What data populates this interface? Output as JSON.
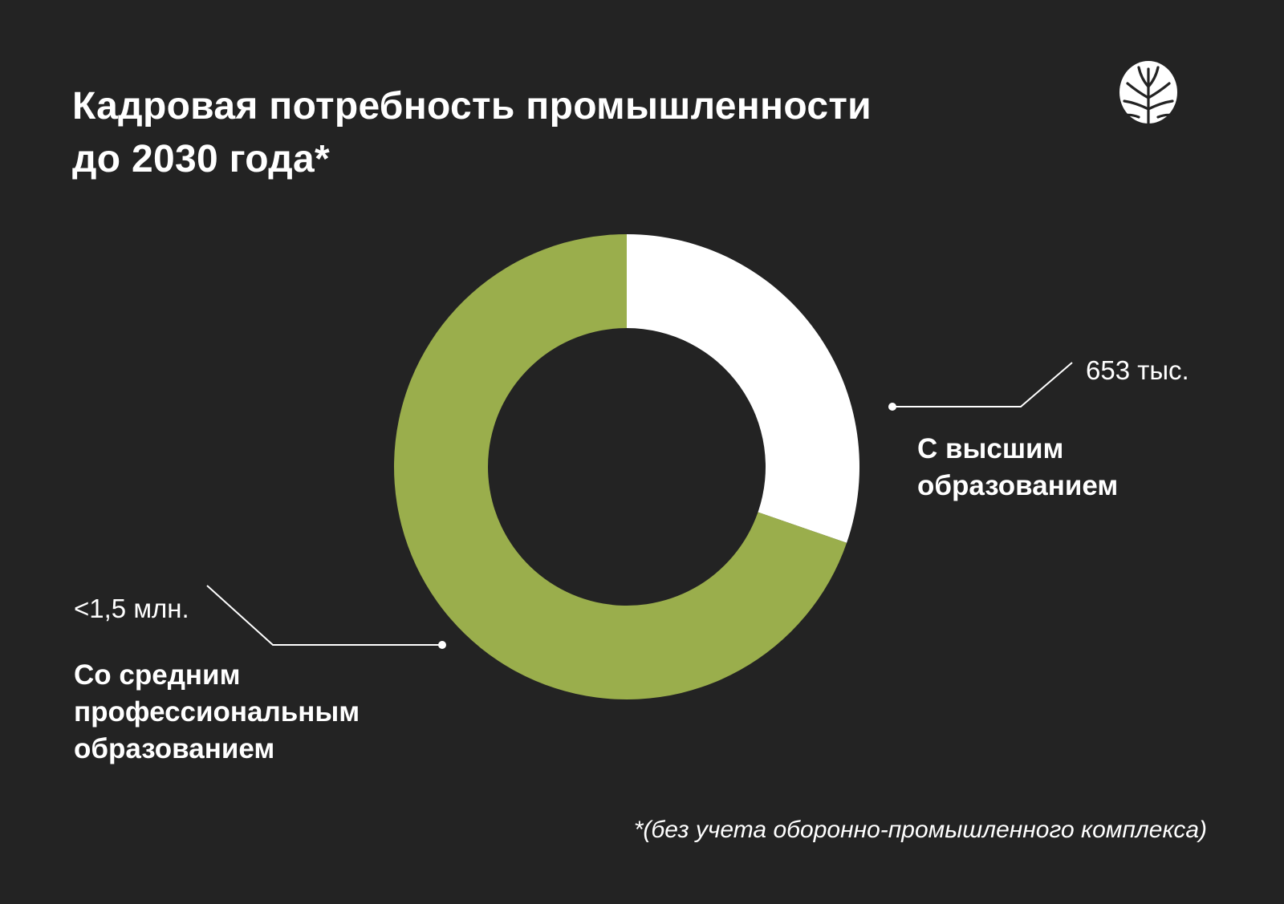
{
  "title_lines": [
    "Кадровая потребность промышленности",
    "до 2030 года*"
  ],
  "logo": {
    "icon": "tree-logo-icon"
  },
  "colors": {
    "background": "#232323",
    "higher_education": "#ffffff",
    "vocational_education": "#9aae4c",
    "text": "#ffffff"
  },
  "chart_data": {
    "type": "pie",
    "variant": "donut",
    "slices": [
      {
        "label_lines": [
          "С высшим",
          "образованием"
        ],
        "value_label": "653 тыс.",
        "share": 0.303,
        "color": "#ffffff"
      },
      {
        "label_lines": [
          "Со средним",
          "профессиональным",
          "образованием"
        ],
        "value_label": "<1,5 млн.",
        "share": 0.697,
        "color": "#9aae4c"
      }
    ]
  },
  "footnote": "*(без учета оборонно-промышленного комплекса)"
}
